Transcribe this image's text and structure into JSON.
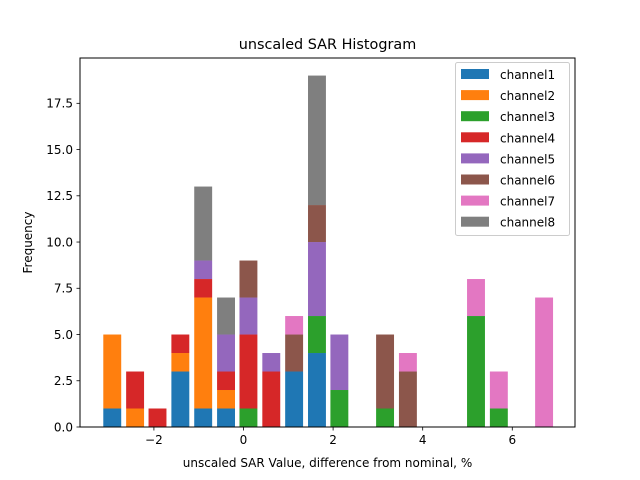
{
  "chart_data": {
    "type": "bar",
    "stacked": true,
    "title": "unscaled SAR Histogram",
    "xlabel": "unscaled SAR Value, difference from nominal, %",
    "ylabel": "Frequency",
    "xlim": [
      -3.65,
      7.4
    ],
    "ylim": [
      0,
      19.95
    ],
    "xticks": [
      -2,
      0,
      2,
      4,
      6
    ],
    "xtick_labels": [
      "−2",
      "0",
      "2",
      "4",
      "6"
    ],
    "yticks": [
      0,
      2.5,
      5,
      7.5,
      10,
      12.5,
      15,
      17.5
    ],
    "ytick_labels": [
      "0.0",
      "2.5",
      "5.0",
      "7.5",
      "10.0",
      "12.5",
      "15.0",
      "17.5"
    ],
    "grid": false,
    "legend_position": "top-right",
    "bar_width": 0.4,
    "x": [
      -2.93,
      -2.42,
      -1.92,
      -1.41,
      -0.9,
      -0.39,
      0.11,
      0.62,
      1.13,
      1.64,
      2.14,
      2.65,
      3.16,
      3.67,
      4.17,
      4.68,
      5.19,
      5.7,
      6.2,
      6.71
    ],
    "series": [
      {
        "name": "channel1",
        "color": "#1f77b4",
        "values": [
          1,
          0,
          0,
          3,
          1,
          1,
          0,
          0,
          3,
          4,
          0,
          0,
          0,
          0,
          0,
          0,
          0,
          0,
          0,
          0
        ]
      },
      {
        "name": "channel2",
        "color": "#ff7f0e",
        "values": [
          4,
          1,
          0,
          1,
          6,
          1,
          0,
          0,
          0,
          0,
          0,
          0,
          0,
          0,
          0,
          0,
          0,
          0,
          0,
          0
        ]
      },
      {
        "name": "channel3",
        "color": "#2ca02c",
        "values": [
          0,
          0,
          0,
          0,
          0,
          0,
          1,
          0,
          0,
          2,
          2,
          0,
          1,
          0,
          0,
          0,
          6,
          1,
          0,
          0
        ]
      },
      {
        "name": "channel4",
        "color": "#d62728",
        "values": [
          0,
          2,
          1,
          1,
          1,
          1,
          4,
          3,
          0,
          0,
          0,
          0,
          0,
          0,
          0,
          0,
          0,
          0,
          0,
          0
        ]
      },
      {
        "name": "channel5",
        "color": "#9467bd",
        "values": [
          0,
          0,
          0,
          0,
          1,
          2,
          2,
          1,
          0,
          4,
          3,
          0,
          0,
          0,
          0,
          0,
          0,
          0,
          0,
          0
        ]
      },
      {
        "name": "channel6",
        "color": "#8c564b",
        "values": [
          0,
          0,
          0,
          0,
          0,
          0,
          2,
          0,
          2,
          2,
          0,
          0,
          4,
          3,
          0,
          0,
          0,
          0,
          0,
          0
        ]
      },
      {
        "name": "channel7",
        "color": "#e377c2",
        "values": [
          0,
          0,
          0,
          0,
          0,
          0,
          0,
          0,
          1,
          0,
          0,
          0,
          0,
          1,
          0,
          0,
          2,
          2,
          0,
          7
        ]
      },
      {
        "name": "channel8",
        "color": "#7f7f7f",
        "values": [
          0,
          0,
          0,
          0,
          4,
          2,
          0,
          0,
          0,
          7,
          0,
          0,
          0,
          0,
          0,
          0,
          0,
          0,
          0,
          0
        ]
      }
    ]
  }
}
